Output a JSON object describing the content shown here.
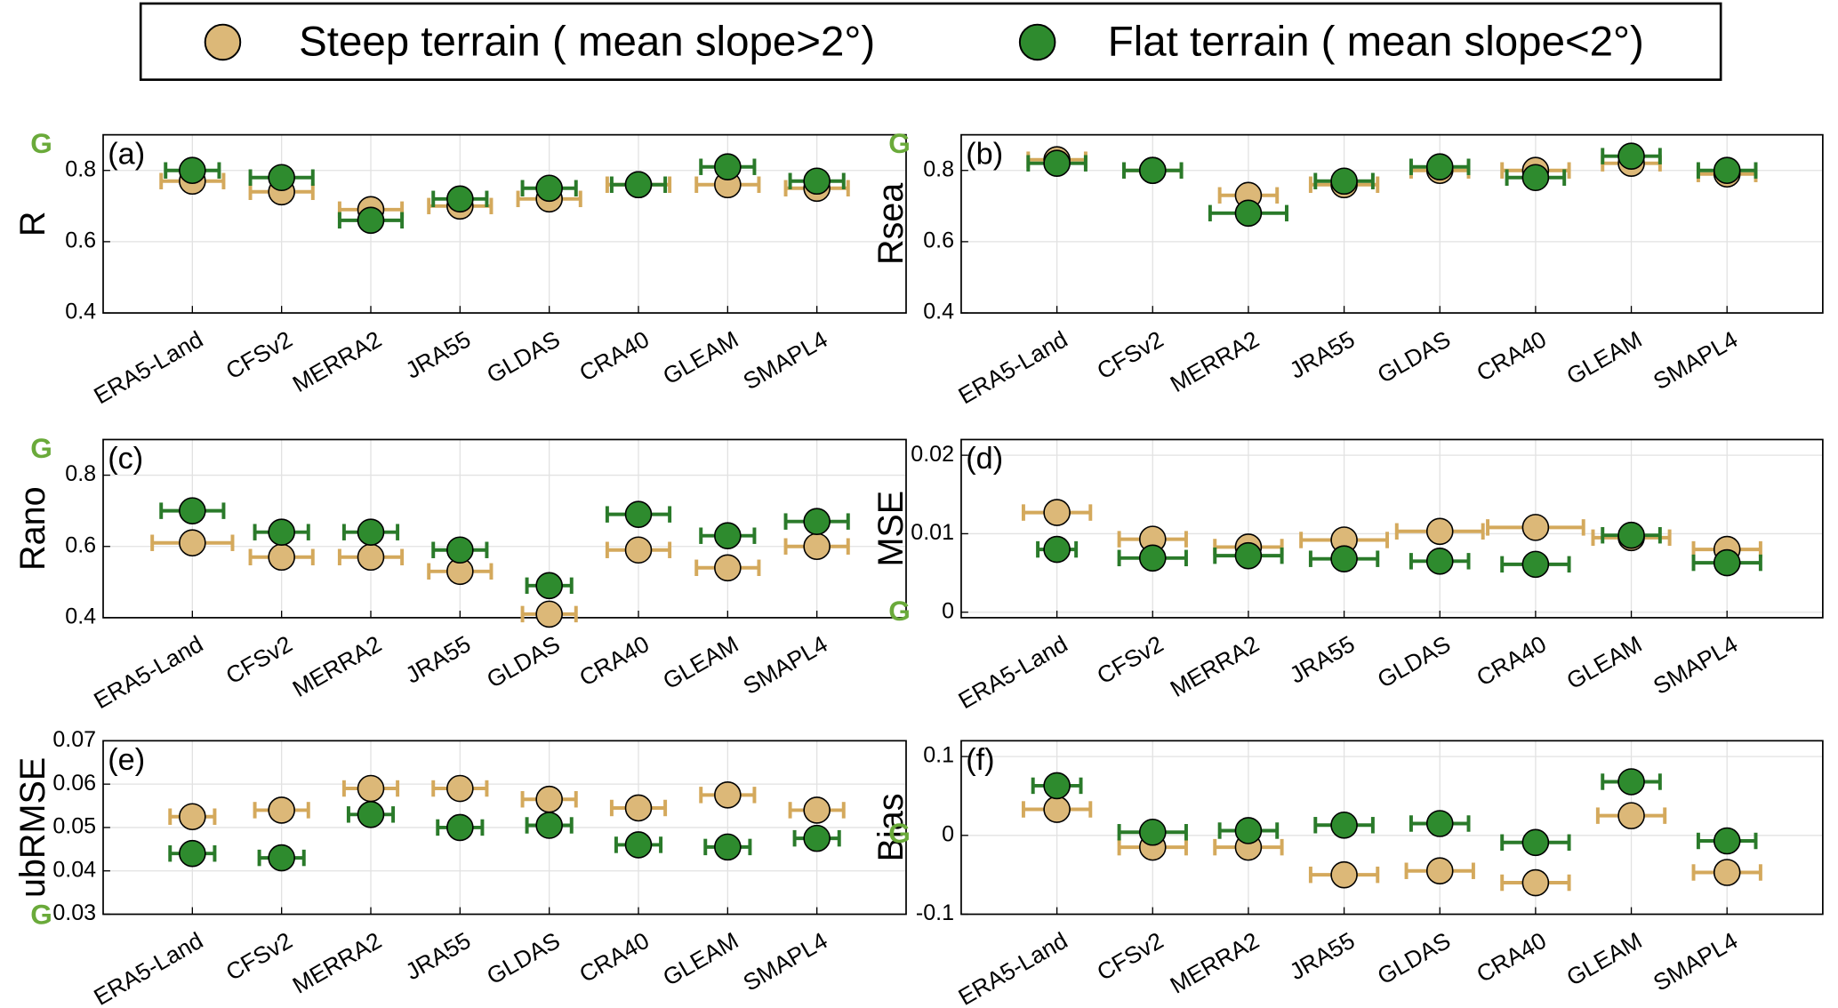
{
  "chart_data": [
    {
      "type": "scatter",
      "panel_label": "(a)",
      "ylabel": "R",
      "annotation": {
        "text": "G",
        "y": 0.87
      },
      "categories": [
        "ERA5-Land",
        "CFSv2",
        "MERRA2",
        "JRA55",
        "GLDAS",
        "CRA40",
        "GLEAM",
        "SMAPL4"
      ],
      "xlim": [
        0,
        9
      ],
      "ylim": [
        0.4,
        0.9
      ],
      "yticks": [
        0.4,
        0.6,
        0.8
      ],
      "grid": true,
      "series": [
        {
          "name": "Steep terrain ( mean slope>2°)",
          "color": "#dcb878",
          "errcolor": "#d4a95c",
          "values": [
            0.77,
            0.74,
            0.69,
            0.7,
            0.72,
            0.76,
            0.76,
            0.75
          ],
          "xerr": [
            0.35,
            0.35,
            0.35,
            0.35,
            0.35,
            0.35,
            0.35,
            0.35
          ]
        },
        {
          "name": "Flat terrain ( mean slope<2°)",
          "color": "#2e8b2e",
          "errcolor": "#2a7a2a",
          "values": [
            0.8,
            0.78,
            0.66,
            0.72,
            0.75,
            0.76,
            0.81,
            0.77
          ],
          "xerr": [
            0.3,
            0.35,
            0.35,
            0.3,
            0.3,
            0.3,
            0.3,
            0.3
          ]
        }
      ]
    },
    {
      "type": "scatter",
      "panel_label": "(b)",
      "ylabel": "Rsea",
      "annotation": {
        "text": "G",
        "y": 0.87
      },
      "categories": [
        "ERA5-Land",
        "CFSv2",
        "MERRA2",
        "JRA55",
        "GLDAS",
        "CRA40",
        "GLEAM",
        "SMAPL4"
      ],
      "xlim": [
        0,
        9
      ],
      "ylim": [
        0.4,
        0.9
      ],
      "yticks": [
        0.4,
        0.6,
        0.8
      ],
      "grid": true,
      "series": [
        {
          "name": "Steep terrain ( mean slope>2°)",
          "color": "#dcb878",
          "errcolor": "#d4a95c",
          "values": [
            0.83,
            0.8,
            0.73,
            0.76,
            0.8,
            0.8,
            0.82,
            0.79
          ],
          "xerr": [
            0.3,
            0.3,
            0.3,
            0.35,
            0.3,
            0.35,
            0.3,
            0.3
          ]
        },
        {
          "name": "Flat terrain ( mean slope<2°)",
          "color": "#2e8b2e",
          "errcolor": "#2a7a2a",
          "values": [
            0.82,
            0.8,
            0.68,
            0.77,
            0.81,
            0.78,
            0.84,
            0.8
          ],
          "xerr": [
            0.3,
            0.3,
            0.4,
            0.3,
            0.3,
            0.3,
            0.3,
            0.3
          ]
        }
      ]
    },
    {
      "type": "scatter",
      "panel_label": "(c)",
      "ylabel": "Rano",
      "annotation": {
        "text": "G",
        "y": 0.87
      },
      "categories": [
        "ERA5-Land",
        "CFSv2",
        "MERRA2",
        "JRA55",
        "GLDAS",
        "CRA40",
        "GLEAM",
        "SMAPL4"
      ],
      "xlim": [
        0,
        9
      ],
      "ylim": [
        0.4,
        0.9
      ],
      "yticks": [
        0.4,
        0.6,
        0.8
      ],
      "grid": true,
      "series": [
        {
          "name": "Steep terrain ( mean slope>2°)",
          "color": "#dcb878",
          "errcolor": "#d4a95c",
          "values": [
            0.61,
            0.57,
            0.57,
            0.53,
            0.41,
            0.59,
            0.54,
            0.6
          ],
          "xerr": [
            0.45,
            0.35,
            0.35,
            0.35,
            0.3,
            0.35,
            0.35,
            0.35
          ]
        },
        {
          "name": "Flat terrain ( mean slope<2°)",
          "color": "#2e8b2e",
          "errcolor": "#2a7a2a",
          "values": [
            0.7,
            0.64,
            0.64,
            0.59,
            0.49,
            0.69,
            0.63,
            0.67
          ],
          "xerr": [
            0.35,
            0.3,
            0.3,
            0.3,
            0.25,
            0.35,
            0.3,
            0.35
          ]
        }
      ]
    },
    {
      "type": "scatter",
      "panel_label": "(d)",
      "ylabel": "MSE",
      "annotation": {
        "text": "G",
        "y": -0.0001
      },
      "categories": [
        "ERA5-Land",
        "CFSv2",
        "MERRA2",
        "JRA55",
        "GLDAS",
        "CRA40",
        "GLEAM",
        "SMAPL4"
      ],
      "xlim": [
        0,
        9
      ],
      "ylim": [
        -0.0007,
        0.022
      ],
      "yticks": [
        0,
        0.01,
        0.02
      ],
      "grid": true,
      "series": [
        {
          "name": "Steep terrain ( mean slope>2°)",
          "color": "#dcb878",
          "errcolor": "#d4a95c",
          "values": [
            0.0127,
            0.0093,
            0.0083,
            0.0092,
            0.0103,
            0.0108,
            0.0095,
            0.008
          ],
          "xerr": [
            0.35,
            0.35,
            0.35,
            0.45,
            0.45,
            0.5,
            0.4,
            0.35
          ]
        },
        {
          "name": "Flat terrain ( mean slope<2°)",
          "color": "#2e8b2e",
          "errcolor": "#2a7a2a",
          "values": [
            0.008,
            0.0069,
            0.0072,
            0.0068,
            0.0065,
            0.0061,
            0.0098,
            0.0063
          ],
          "xerr": [
            0.2,
            0.35,
            0.35,
            0.35,
            0.3,
            0.35,
            0.3,
            0.35
          ]
        }
      ]
    },
    {
      "type": "scatter",
      "panel_label": "(e)",
      "ylabel": "ubRMSE",
      "annotation": {
        "text": "G",
        "y": 0.0295
      },
      "categories": [
        "ERA5-Land",
        "CFSv2",
        "MERRA2",
        "JRA55",
        "GLDAS",
        "CRA40",
        "GLEAM",
        "SMAPL4"
      ],
      "xlim": [
        0,
        9
      ],
      "ylim": [
        0.03,
        0.07
      ],
      "yticks": [
        0.03,
        0.04,
        0.05,
        0.06,
        0.07
      ],
      "grid": true,
      "series": [
        {
          "name": "Steep terrain ( mean slope>2°)",
          "color": "#dcb878",
          "errcolor": "#d4a95c",
          "values": [
            0.0525,
            0.054,
            0.059,
            0.059,
            0.0565,
            0.0545,
            0.0575,
            0.054
          ],
          "xerr": [
            0.25,
            0.3,
            0.3,
            0.3,
            0.3,
            0.3,
            0.3,
            0.3
          ]
        },
        {
          "name": "Flat terrain ( mean slope<2°)",
          "color": "#2e8b2e",
          "errcolor": "#2a7a2a",
          "values": [
            0.044,
            0.043,
            0.053,
            0.05,
            0.0505,
            0.046,
            0.0455,
            0.0475
          ],
          "xerr": [
            0.25,
            0.25,
            0.25,
            0.25,
            0.25,
            0.25,
            0.25,
            0.25
          ]
        }
      ]
    },
    {
      "type": "scatter",
      "panel_label": "(f)",
      "ylabel": "Bias",
      "annotation": {
        "text": "G",
        "y": 0.0
      },
      "categories": [
        "ERA5-Land",
        "CFSv2",
        "MERRA2",
        "JRA55",
        "GLDAS",
        "CRA40",
        "GLEAM",
        "SMAPL4"
      ],
      "xlim": [
        0,
        9
      ],
      "ylim": [
        -0.1,
        0.12
      ],
      "yticks": [
        -0.1,
        0,
        0.1
      ],
      "grid": true,
      "series": [
        {
          "name": "Steep terrain ( mean slope>2°)",
          "color": "#dcb878",
          "errcolor": "#d4a95c",
          "values": [
            0.033,
            -0.015,
            -0.015,
            -0.05,
            -0.045,
            -0.06,
            0.025,
            -0.047
          ],
          "xerr": [
            0.35,
            0.35,
            0.35,
            0.35,
            0.35,
            0.35,
            0.35,
            0.35
          ]
        },
        {
          "name": "Flat terrain ( mean slope<2°)",
          "color": "#2e8b2e",
          "errcolor": "#2a7a2a",
          "values": [
            0.063,
            0.004,
            0.006,
            0.013,
            0.015,
            -0.009,
            0.068,
            -0.007
          ],
          "xerr": [
            0.25,
            0.35,
            0.3,
            0.3,
            0.3,
            0.35,
            0.3,
            0.3
          ]
        }
      ]
    }
  ]
}
